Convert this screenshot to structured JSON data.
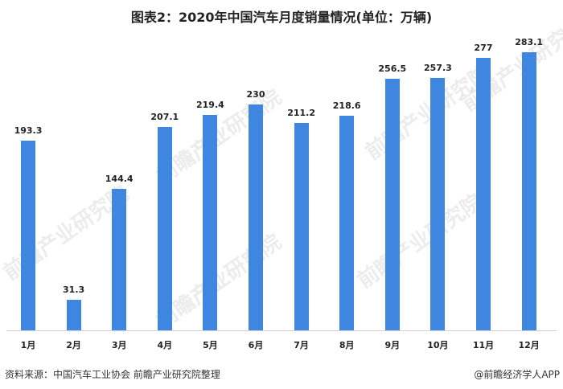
{
  "title": "图表2：2020年中国汽车月度销量情况(单位：万辆)",
  "footer": {
    "source": "资料来源：中国汽车工业协会 前瞻产业研究院整理",
    "credit": "@前瞻经济学人APP"
  },
  "watermark": "前瞻产业研究院",
  "colors": {
    "bar": "#3f86e0",
    "axis": "#d0d0d0"
  },
  "chart_data": {
    "type": "bar",
    "title": "图表2：2020年中国汽车月度销量情况(单位：万辆)",
    "xlabel": "",
    "ylabel": "万辆",
    "categories": [
      "1月",
      "2月",
      "3月",
      "4月",
      "5月",
      "6月",
      "7月",
      "8月",
      "9月",
      "10月",
      "11月",
      "12月"
    ],
    "values": [
      193.3,
      31.3,
      144.4,
      207.1,
      219.4,
      230,
      211.2,
      218.6,
      256.5,
      257.3,
      277,
      283.1
    ],
    "value_labels": [
      "193.3",
      "31.3",
      "144.4",
      "207.1",
      "219.4",
      "230",
      "211.2",
      "218.6",
      "256.5",
      "257.3",
      "277",
      "283.1"
    ],
    "grid": false,
    "legend": "none",
    "ylim": [
      0,
      300
    ]
  }
}
